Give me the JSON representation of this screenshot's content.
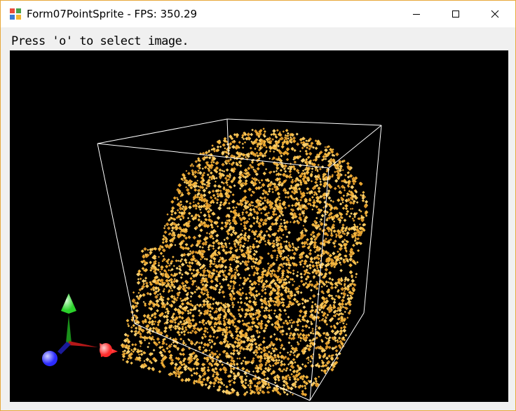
{
  "window": {
    "title": "Form07PointSprite - FPS: 350.29",
    "app_icon": "windows-form-icon",
    "controls": {
      "minimize_icon": "minimize-icon",
      "maximize_icon": "maximize-icon",
      "close_icon": "close-icon"
    }
  },
  "client": {
    "hint_text": "Press 'o' to select image."
  },
  "viewport": {
    "scene": "point-sprite-volume",
    "sprite_color": "#f2b640",
    "box_color": "#ffffff",
    "background": "#000000",
    "axis_colors": {
      "x": "#ff2b2b",
      "y": "#2bd22b",
      "z": "#2b2bff"
    }
  }
}
